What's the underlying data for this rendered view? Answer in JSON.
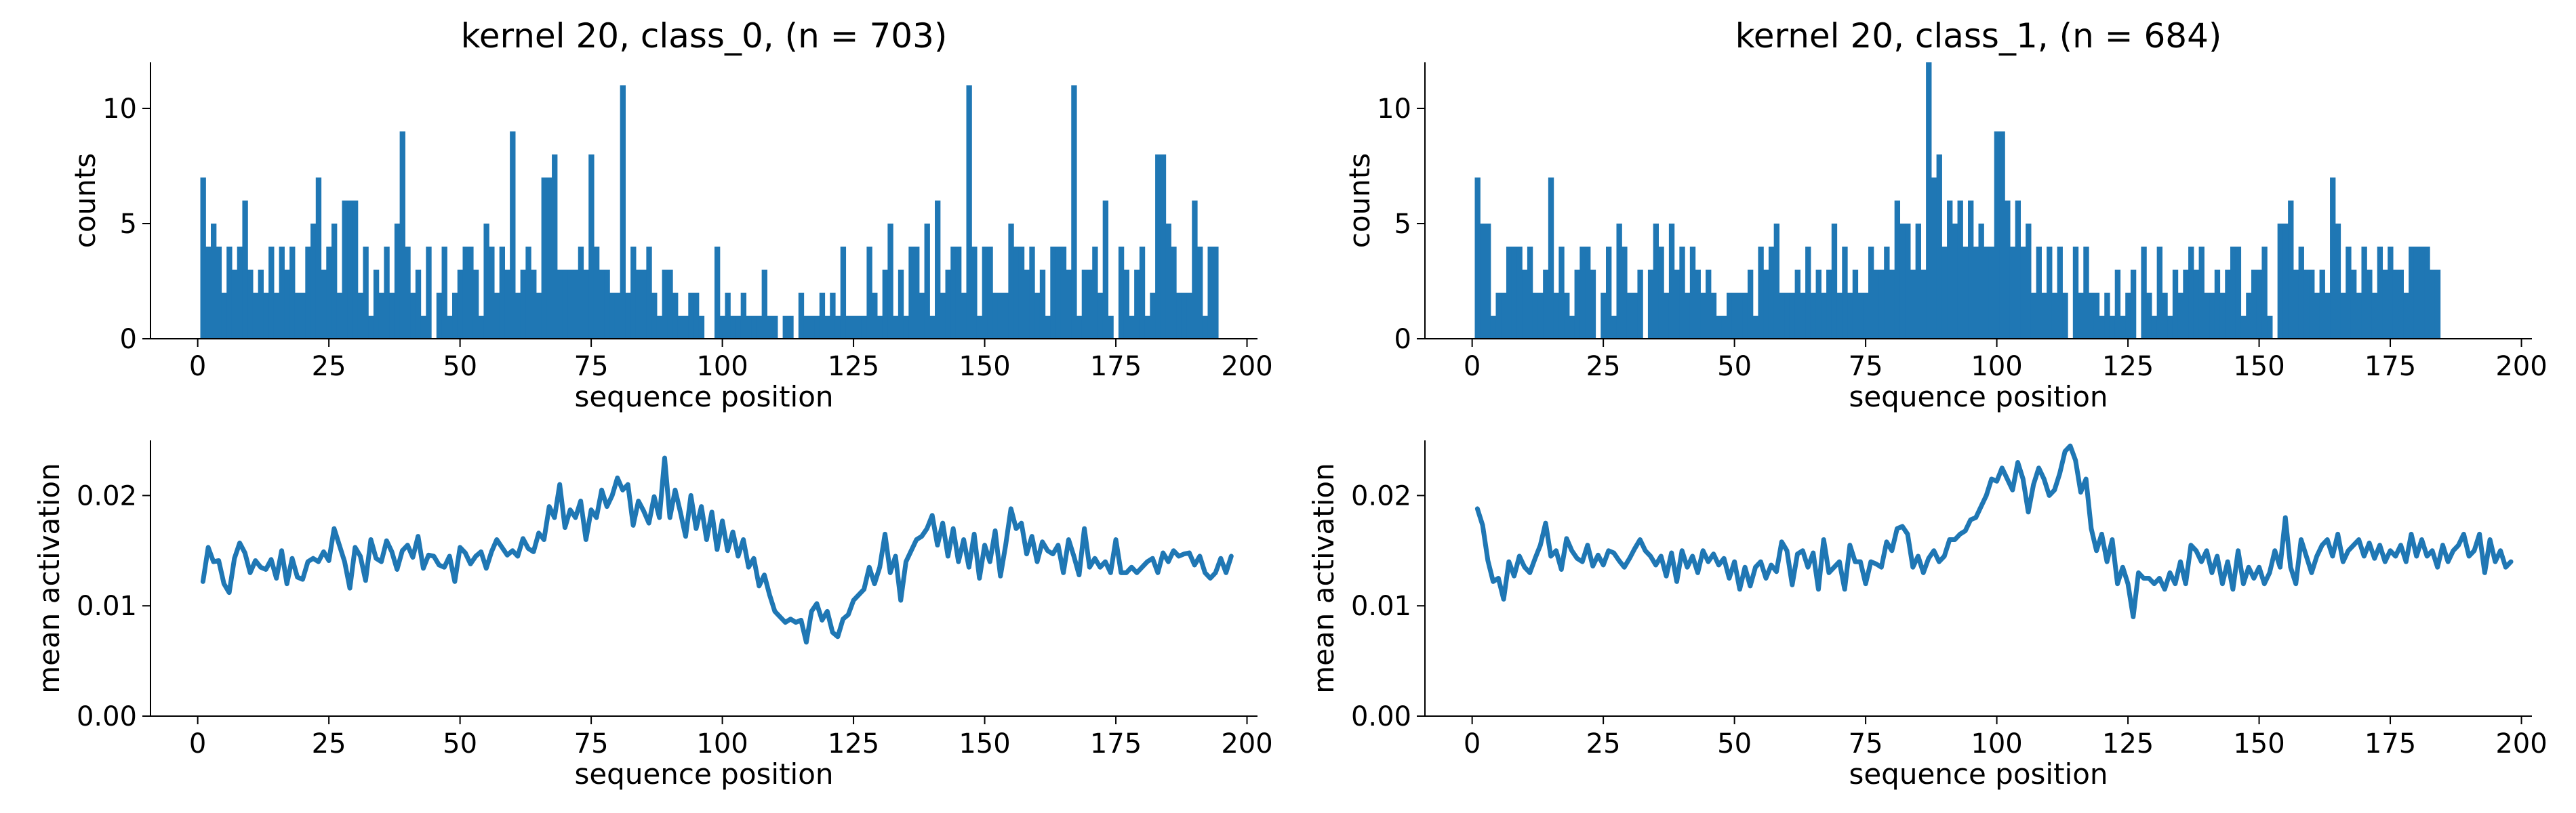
{
  "colors": {
    "series": "#1f77b4",
    "axis": "#000000",
    "background": "#ffffff"
  },
  "chart_data": [
    {
      "type": "bar",
      "panel": "top-left",
      "title": "kernel 20, class_0, (n = 703)",
      "xlabel": "sequence position",
      "ylabel": "counts",
      "xlim": [
        -9,
        202
      ],
      "ylim": [
        0,
        12
      ],
      "xticks": [
        0,
        25,
        50,
        75,
        100,
        125,
        150,
        175,
        200
      ],
      "yticks": [
        0,
        5,
        10
      ],
      "x_start": 1,
      "values": [
        7,
        4,
        5,
        4,
        2,
        4,
        3,
        4,
        6,
        3,
        2,
        3,
        2,
        4,
        2,
        4,
        3,
        4,
        2,
        2,
        4,
        5,
        7,
        3,
        4,
        5,
        2,
        6,
        6,
        6,
        2,
        4,
        1,
        3,
        2,
        4,
        2,
        5,
        9,
        4,
        2,
        3,
        1,
        4,
        0,
        2,
        4,
        1,
        2,
        3,
        4,
        4,
        3,
        1,
        5,
        4,
        2,
        4,
        3,
        9,
        2,
        3,
        4,
        3,
        2,
        7,
        7,
        8,
        3,
        3,
        3,
        3,
        4,
        3,
        8,
        4,
        3,
        3,
        2,
        2,
        11,
        2,
        4,
        3,
        3,
        4,
        2,
        1,
        3,
        3,
        2,
        1,
        1,
        2,
        2,
        1,
        0,
        0,
        4,
        1,
        2,
        1,
        1,
        2,
        1,
        1,
        1,
        3,
        1,
        1,
        0,
        1,
        1,
        0,
        2,
        1,
        1,
        1,
        2,
        1,
        2,
        1,
        4,
        1,
        1,
        1,
        1,
        4,
        2,
        1,
        3,
        5,
        1,
        3,
        1,
        4,
        4,
        2,
        5,
        1,
        6,
        2,
        3,
        4,
        4,
        2,
        11,
        4,
        1,
        4,
        4,
        2,
        2,
        2,
        5,
        4,
        4,
        3,
        4,
        2,
        3,
        1,
        4,
        4,
        4,
        3,
        11,
        1,
        3,
        3,
        4,
        2,
        6,
        1,
        0,
        4,
        3,
        1,
        3,
        4,
        1,
        2,
        8,
        8,
        5,
        4,
        2,
        2,
        2,
        6,
        4,
        1,
        4,
        4
      ]
    },
    {
      "type": "bar",
      "panel": "top-right",
      "title": "kernel 20, class_1, (n = 684)",
      "xlabel": "sequence position",
      "ylabel": "counts",
      "xlim": [
        -9,
        202
      ],
      "ylim": [
        0,
        12
      ],
      "xticks": [
        0,
        25,
        50,
        75,
        100,
        125,
        150,
        175,
        200
      ],
      "yticks": [
        0,
        5,
        10
      ],
      "x_start": 1,
      "values": [
        7,
        5,
        5,
        1,
        2,
        2,
        4,
        4,
        4,
        3,
        4,
        2,
        2,
        3,
        7,
        2,
        4,
        2,
        1,
        3,
        4,
        4,
        3,
        0,
        2,
        4,
        1,
        5,
        4,
        2,
        2,
        3,
        0,
        3,
        5,
        4,
        2,
        5,
        3,
        4,
        2,
        4,
        3,
        2,
        3,
        2,
        1,
        1,
        2,
        2,
        2,
        2,
        3,
        1,
        4,
        3,
        4,
        5,
        2,
        2,
        2,
        3,
        2,
        4,
        2,
        3,
        2,
        3,
        5,
        2,
        4,
        2,
        3,
        2,
        2,
        4,
        3,
        3,
        4,
        3,
        6,
        5,
        5,
        3,
        5,
        3,
        12,
        7,
        8,
        4,
        6,
        5,
        6,
        4,
        6,
        4,
        5,
        4,
        4,
        9,
        9,
        6,
        4,
        6,
        4,
        5,
        2,
        4,
        2,
        4,
        2,
        4,
        2,
        0,
        4,
        2,
        4,
        2,
        2,
        1,
        2,
        1,
        3,
        1,
        2,
        3,
        0,
        4,
        2,
        1,
        4,
        2,
        1,
        3,
        2,
        3,
        4,
        3,
        4,
        2,
        2,
        3,
        2,
        3,
        4,
        4,
        1,
        2,
        3,
        3,
        4,
        1,
        0,
        5,
        5,
        6,
        3,
        4,
        3,
        3,
        2,
        3,
        2,
        7,
        5,
        2,
        4,
        3,
        2,
        4,
        3,
        2,
        4,
        3,
        4,
        3,
        3,
        2,
        4,
        4,
        4,
        4,
        3,
        3
      ]
    },
    {
      "type": "line",
      "panel": "bottom-left",
      "xlabel": "sequence position",
      "ylabel": "mean activation",
      "xlim": [
        -9,
        202
      ],
      "ylim": [
        0,
        0.025
      ],
      "xticks": [
        0,
        25,
        50,
        75,
        100,
        125,
        150,
        175,
        200
      ],
      "yticks": [
        0.0,
        0.01,
        0.02
      ],
      "ytick_labels": [
        "0.00",
        "0.01",
        "0.02"
      ],
      "x_start": 1,
      "values": [
        0.0122,
        0.0153,
        0.014,
        0.0141,
        0.012,
        0.0112,
        0.0143,
        0.0157,
        0.0148,
        0.013,
        0.0141,
        0.0135,
        0.0133,
        0.0142,
        0.0125,
        0.015,
        0.012,
        0.0143,
        0.0126,
        0.0124,
        0.014,
        0.0143,
        0.014,
        0.0149,
        0.0141,
        0.017,
        0.0155,
        0.014,
        0.0116,
        0.0153,
        0.0145,
        0.0123,
        0.016,
        0.0143,
        0.014,
        0.0159,
        0.0149,
        0.0133,
        0.015,
        0.0155,
        0.0144,
        0.0163,
        0.0134,
        0.0146,
        0.0145,
        0.0137,
        0.0135,
        0.0145,
        0.0122,
        0.0153,
        0.0148,
        0.0138,
        0.0145,
        0.0149,
        0.0134,
        0.0149,
        0.016,
        0.0153,
        0.0146,
        0.015,
        0.0145,
        0.0161,
        0.0152,
        0.0149,
        0.0166,
        0.016,
        0.019,
        0.018,
        0.021,
        0.0171,
        0.0187,
        0.018,
        0.0195,
        0.016,
        0.0187,
        0.018,
        0.0205,
        0.019,
        0.02,
        0.0216,
        0.0205,
        0.021,
        0.0173,
        0.0195,
        0.0186,
        0.0175,
        0.0199,
        0.018,
        0.0234,
        0.018,
        0.0205,
        0.0185,
        0.0163,
        0.02,
        0.017,
        0.019,
        0.016,
        0.0185,
        0.0151,
        0.0177,
        0.015,
        0.0167,
        0.0145,
        0.016,
        0.0135,
        0.0143,
        0.0118,
        0.0128,
        0.011,
        0.0095,
        0.009,
        0.0085,
        0.0088,
        0.0085,
        0.0087,
        0.0067,
        0.0095,
        0.0102,
        0.0087,
        0.0095,
        0.0076,
        0.0072,
        0.0088,
        0.0092,
        0.0105,
        0.011,
        0.0115,
        0.0135,
        0.012,
        0.0135,
        0.0165,
        0.013,
        0.0145,
        0.0105,
        0.014,
        0.015,
        0.016,
        0.0163,
        0.017,
        0.0182,
        0.0155,
        0.0175,
        0.0145,
        0.017,
        0.014,
        0.016,
        0.0135,
        0.0165,
        0.0125,
        0.0155,
        0.014,
        0.0168,
        0.0127,
        0.0155,
        0.0188,
        0.017,
        0.0175,
        0.0147,
        0.0163,
        0.014,
        0.0158,
        0.015,
        0.0147,
        0.0155,
        0.013,
        0.016,
        0.0145,
        0.0128,
        0.017,
        0.0135,
        0.0143,
        0.0135,
        0.014,
        0.013,
        0.016,
        0.013,
        0.013,
        0.0135,
        0.013,
        0.0135,
        0.014,
        0.0143,
        0.013,
        0.0148,
        0.014,
        0.015,
        0.0145,
        0.0147,
        0.0148,
        0.0137,
        0.0145,
        0.013,
        0.0125,
        0.013,
        0.0143,
        0.013,
        0.0145
      ]
    },
    {
      "type": "line",
      "panel": "bottom-right",
      "xlabel": "sequence position",
      "ylabel": "mean activation",
      "xlim": [
        -9,
        202
      ],
      "ylim": [
        0,
        0.025
      ],
      "xticks": [
        0,
        25,
        50,
        75,
        100,
        125,
        150,
        175,
        200
      ],
      "yticks": [
        0.0,
        0.01,
        0.02
      ],
      "ytick_labels": [
        "0.00",
        "0.01",
        "0.02"
      ],
      "x_start": 1,
      "values": [
        0.0188,
        0.0173,
        0.0141,
        0.0122,
        0.0125,
        0.0106,
        0.014,
        0.0127,
        0.0145,
        0.0135,
        0.013,
        0.0143,
        0.0155,
        0.0175,
        0.0145,
        0.015,
        0.0133,
        0.0161,
        0.015,
        0.0143,
        0.014,
        0.0155,
        0.0136,
        0.0146,
        0.0137,
        0.015,
        0.0148,
        0.0141,
        0.0135,
        0.0143,
        0.0152,
        0.016,
        0.015,
        0.0145,
        0.0137,
        0.0145,
        0.0127,
        0.0148,
        0.0122,
        0.015,
        0.0135,
        0.0145,
        0.013,
        0.015,
        0.014,
        0.0147,
        0.0137,
        0.0143,
        0.0125,
        0.014,
        0.0115,
        0.0135,
        0.0118,
        0.0135,
        0.014,
        0.0125,
        0.0137,
        0.0131,
        0.0158,
        0.015,
        0.0119,
        0.0147,
        0.015,
        0.0135,
        0.0148,
        0.0115,
        0.016,
        0.013,
        0.0135,
        0.014,
        0.0115,
        0.0155,
        0.014,
        0.014,
        0.012,
        0.014,
        0.0138,
        0.0135,
        0.0158,
        0.015,
        0.017,
        0.0172,
        0.0165,
        0.0135,
        0.0145,
        0.013,
        0.0143,
        0.015,
        0.014,
        0.0145,
        0.016,
        0.016,
        0.0165,
        0.0168,
        0.0178,
        0.018,
        0.019,
        0.02,
        0.0215,
        0.0213,
        0.0225,
        0.0215,
        0.0205,
        0.023,
        0.0215,
        0.0185,
        0.021,
        0.0225,
        0.0215,
        0.02,
        0.0205,
        0.022,
        0.024,
        0.0245,
        0.0232,
        0.0203,
        0.0215,
        0.017,
        0.015,
        0.0165,
        0.014,
        0.016,
        0.012,
        0.0135,
        0.012,
        0.009,
        0.013,
        0.0125,
        0.0125,
        0.012,
        0.0125,
        0.0115,
        0.013,
        0.012,
        0.014,
        0.012,
        0.0155,
        0.015,
        0.014,
        0.015,
        0.013,
        0.0145,
        0.012,
        0.014,
        0.0115,
        0.015,
        0.012,
        0.0135,
        0.0125,
        0.0135,
        0.012,
        0.013,
        0.015,
        0.0135,
        0.018,
        0.0135,
        0.012,
        0.016,
        0.0145,
        0.013,
        0.0145,
        0.0155,
        0.016,
        0.0145,
        0.0165,
        0.014,
        0.015,
        0.0155,
        0.016,
        0.0145,
        0.0157,
        0.0143,
        0.0155,
        0.014,
        0.015,
        0.0145,
        0.0155,
        0.014,
        0.0165,
        0.0145,
        0.016,
        0.0145,
        0.015,
        0.0135,
        0.0155,
        0.014,
        0.015,
        0.0155,
        0.0165,
        0.0145,
        0.015,
        0.0165,
        0.013,
        0.016,
        0.014,
        0.015,
        0.0135,
        0.014
      ]
    }
  ]
}
